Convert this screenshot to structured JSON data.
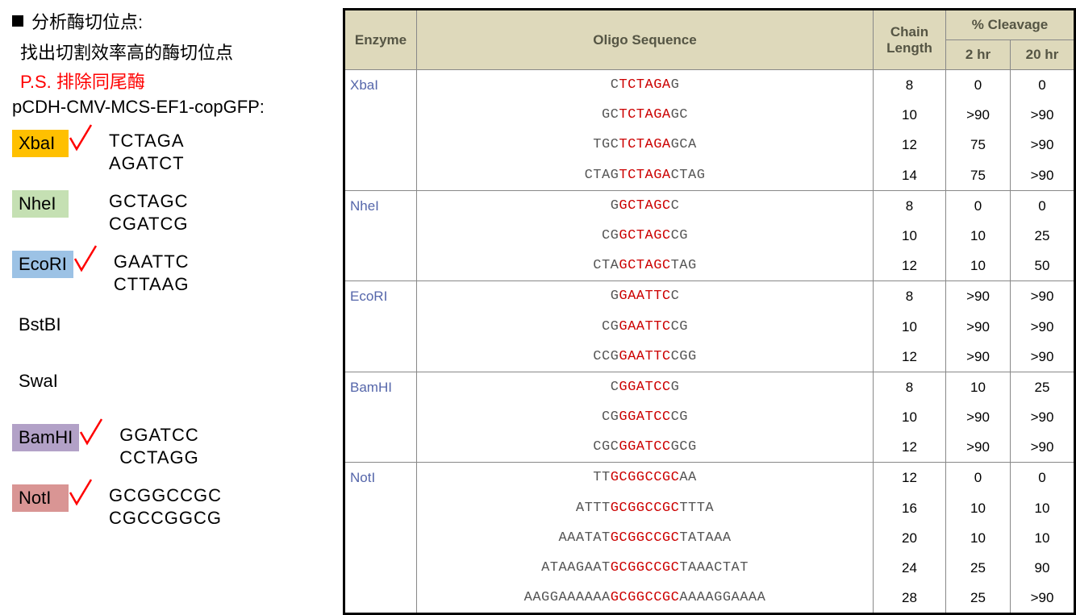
{
  "left": {
    "title": "分析酶切位点:",
    "subtitle": "找出切割效率高的酶切位点",
    "note": "P.S. 排除同尾酶",
    "plasmid": "pCDH-CMV-MCS-EF1-copGFP:",
    "enzymes": [
      {
        "name": "XbaI",
        "bg": "bg-yellow",
        "check": true,
        "seq1": "TCTAGA",
        "seq2": "AGATCT"
      },
      {
        "name": "NheI",
        "bg": "bg-green",
        "check": false,
        "seq1": "GCTAGC",
        "seq2": "CGATCG"
      },
      {
        "name": "EcoRI",
        "bg": "bg-blue",
        "check": true,
        "seq1": "GAATTC",
        "seq2": "CTTAAG"
      },
      {
        "name": "BstBI",
        "bg": "",
        "check": false,
        "seq1": "",
        "seq2": ""
      },
      {
        "name": "SwaI",
        "bg": "",
        "check": false,
        "seq1": "",
        "seq2": ""
      },
      {
        "name": "BamHI",
        "bg": "bg-purple",
        "check": true,
        "seq1": "GGATCC",
        "seq2": "CCTAGG"
      },
      {
        "name": "NotI",
        "bg": "bg-pink",
        "check": true,
        "seq1": "GCGGCCGC",
        "seq2": "CGCCGGCG"
      }
    ]
  },
  "table": {
    "headers": {
      "enzyme": "Enzyme",
      "oligo": "Oligo Sequence",
      "chain": "Chain Length",
      "cleavage": "% Cleavage",
      "hr2": "2 hr",
      "hr20": "20 hr"
    },
    "groups": [
      {
        "enzyme": "XbaI",
        "rows": [
          {
            "pre": "C",
            "site": "TCTAGA",
            "post": "G",
            "len": "8",
            "h2": "0",
            "h20": "0"
          },
          {
            "pre": "GC",
            "site": "TCTAGA",
            "post": "GC",
            "len": "10",
            "h2": ">90",
            "h20": ">90"
          },
          {
            "pre": "TGC",
            "site": "TCTAGA",
            "post": "GCA",
            "len": "12",
            "h2": "75",
            "h20": ">90"
          },
          {
            "pre": "CTAG",
            "site": "TCTAGA",
            "post": "CTAG",
            "len": "14",
            "h2": "75",
            "h20": ">90"
          }
        ]
      },
      {
        "enzyme": "NheI",
        "rows": [
          {
            "pre": "G",
            "site": "GCTAGC",
            "post": "C",
            "len": "8",
            "h2": "0",
            "h20": "0"
          },
          {
            "pre": "CG",
            "site": "GCTAGC",
            "post": "CG",
            "len": "10",
            "h2": "10",
            "h20": "25"
          },
          {
            "pre": "CTA",
            "site": "GCTAGC",
            "post": "TAG",
            "len": "12",
            "h2": "10",
            "h20": "50"
          }
        ]
      },
      {
        "enzyme": "EcoRI",
        "rows": [
          {
            "pre": "G",
            "site": "GAATTC",
            "post": "C",
            "len": "8",
            "h2": ">90",
            "h20": ">90"
          },
          {
            "pre": "CG",
            "site": "GAATTC",
            "post": "CG",
            "len": "10",
            "h2": ">90",
            "h20": ">90"
          },
          {
            "pre": "CCG",
            "site": "GAATTC",
            "post": "CGG",
            "len": "12",
            "h2": ">90",
            "h20": ">90"
          }
        ]
      },
      {
        "enzyme": "BamHI",
        "rows": [
          {
            "pre": "C",
            "site": "GGATCC",
            "post": "G",
            "len": "8",
            "h2": "10",
            "h20": "25"
          },
          {
            "pre": "CG",
            "site": "GGATCC",
            "post": "CG",
            "len": "10",
            "h2": ">90",
            "h20": ">90"
          },
          {
            "pre": "CGC",
            "site": "GGATCC",
            "post": "GCG",
            "len": "12",
            "h2": ">90",
            "h20": ">90"
          }
        ]
      },
      {
        "enzyme": "NotI",
        "rows": [
          {
            "pre": "TT",
            "site": "GCGGCCGC",
            "post": "AA",
            "len": "12",
            "h2": "0",
            "h20": "0"
          },
          {
            "pre": "ATTT",
            "site": "GCGGCCGC",
            "post": "TTTA",
            "len": "16",
            "h2": "10",
            "h20": "10"
          },
          {
            "pre": "AAATAT",
            "site": "GCGGCCGC",
            "post": "TATAAA",
            "len": "20",
            "h2": "10",
            "h20": "10"
          },
          {
            "pre": "ATAAGAAT",
            "site": "GCGGCCGC",
            "post": "TAAACTAT",
            "len": "24",
            "h2": "25",
            "h20": "90"
          },
          {
            "pre": "AAGGAAAAAA",
            "site": "GCGGCCGC",
            "post": "AAAAGGAAAA",
            "len": "28",
            "h2": "25",
            "h20": ">90"
          }
        ]
      }
    ]
  },
  "colors": {
    "checkmark_stroke": "#ff0000"
  }
}
